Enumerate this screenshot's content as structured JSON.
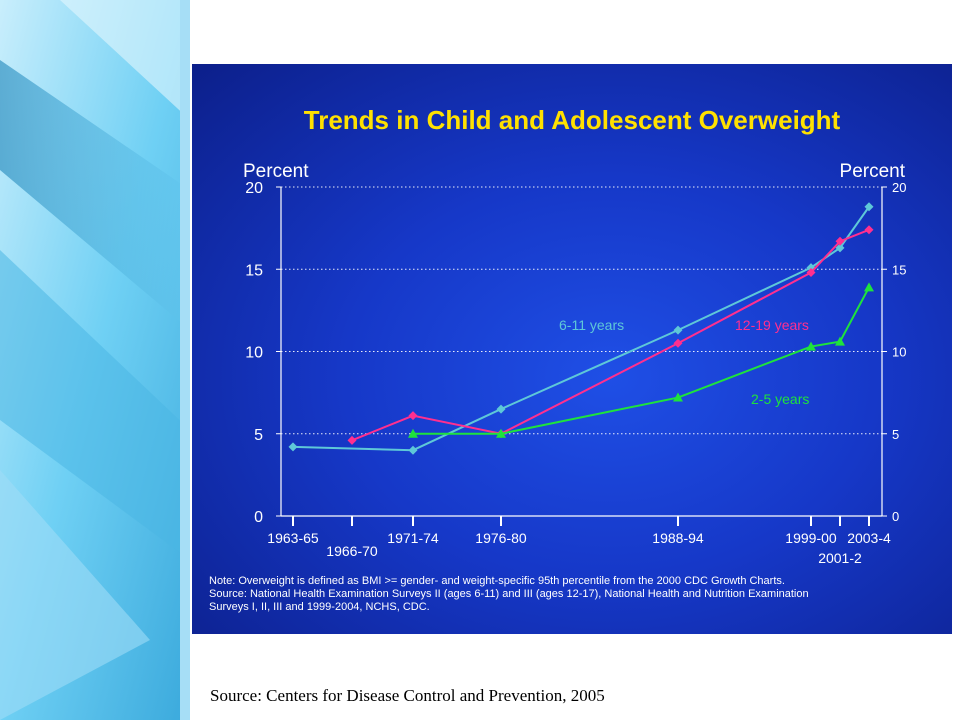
{
  "chart_data": {
    "type": "line",
    "title": "Trends in Child and Adolescent Overweight",
    "ylabel_left": "Percent",
    "ylabel_right": "Percent",
    "ylim": [
      0,
      20
    ],
    "yticks": [
      0,
      5,
      10,
      15,
      20
    ],
    "grid": true,
    "xtick_labels_upper": [
      "1963-65",
      "1971-74",
      "1976-80",
      "1988-94",
      "1999-00",
      "2003-4"
    ],
    "xtick_labels_lower": [
      "1966-70",
      "2001-2"
    ],
    "series": [
      {
        "name": "6-11 years",
        "color": "#5ec8d8",
        "points": [
          {
            "x": "1963-65",
            "y": 4.2
          },
          {
            "x": "1971-74",
            "y": 4.0
          },
          {
            "x": "1976-80",
            "y": 6.5
          },
          {
            "x": "1988-94",
            "y": 11.3
          },
          {
            "x": "1999-00",
            "y": 15.1
          },
          {
            "x": "2001-2",
            "y": 16.3
          },
          {
            "x": "2003-4",
            "y": 18.8
          }
        ]
      },
      {
        "name": "12-19 years",
        "color": "#ff2f8f",
        "points": [
          {
            "x": "1966-70",
            "y": 4.6
          },
          {
            "x": "1971-74",
            "y": 6.1
          },
          {
            "x": "1976-80",
            "y": 5.0
          },
          {
            "x": "1988-94",
            "y": 10.5
          },
          {
            "x": "1999-00",
            "y": 14.8
          },
          {
            "x": "2001-2",
            "y": 16.7
          },
          {
            "x": "2003-4",
            "y": 17.4
          }
        ]
      },
      {
        "name": "2-5 years",
        "color": "#1ee33c",
        "points": [
          {
            "x": "1971-74",
            "y": 5.0
          },
          {
            "x": "1976-80",
            "y": 5.0
          },
          {
            "x": "1988-94",
            "y": 7.2
          },
          {
            "x": "1999-00",
            "y": 10.3
          },
          {
            "x": "2001-2",
            "y": 10.6
          },
          {
            "x": "2003-4",
            "y": 13.9
          }
        ]
      }
    ]
  },
  "note_lines": [
    "Note: Overweight is defined as BMI >= gender- and weight-specific 95th percentile from the 2000 CDC Growth Charts.",
    "Source: National Health Examination Surveys II (ages 6-11) and III (ages 12-17), National Health and Nutrition Examination",
    "Surveys I, II, III and 1999-2004, NCHS, CDC."
  ],
  "footer": {
    "source": "Source: Centers for Disease Control and Prevention, 2005"
  },
  "colors": {
    "title": "#ffe100",
    "panel_bg": "#1638c8",
    "axis": "#ffffff",
    "sidebar_light": "#bfe9fb",
    "sidebar_mid": "#5fc4ee",
    "sidebar_dark": "#2a8fc4"
  }
}
